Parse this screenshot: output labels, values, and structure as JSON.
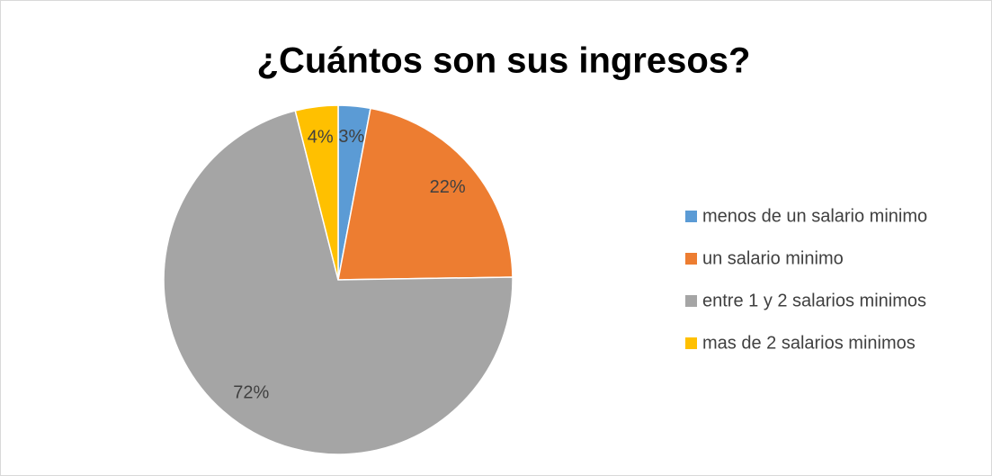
{
  "chart_data": {
    "type": "pie",
    "title": "¿Cuántos son sus ingresos?",
    "categories": [
      "menos de un salario minimo",
      "un salario minimo",
      "entre 1 y 2 salarios minimos",
      "mas de 2 salarios minimos"
    ],
    "values": [
      3,
      22,
      72,
      4
    ],
    "value_labels": [
      "3%",
      "22%",
      "72%",
      "4%"
    ],
    "colors": [
      "#5b9bd5",
      "#ed7d31",
      "#a5a5a5",
      "#ffc000"
    ],
    "legend": "right"
  }
}
